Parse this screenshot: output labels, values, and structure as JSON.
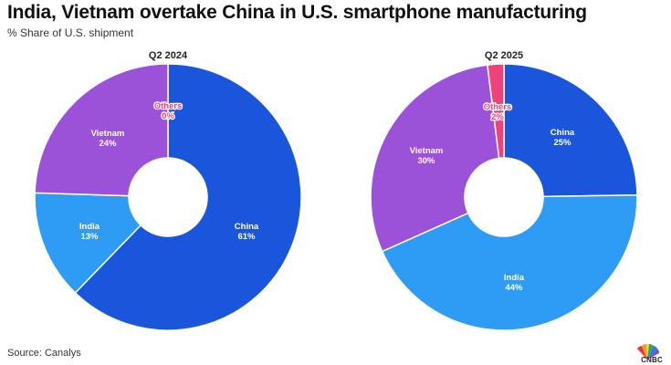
{
  "header": {
    "title": "India, Vietnam overtake China in U.S. smartphone manufacturing",
    "subtitle": "% Share of U.S. shipment"
  },
  "footer": {
    "source": "Source: Canalys",
    "logo_text": "CNBC",
    "logo_icon": "peacock-icon"
  },
  "colors": {
    "china": "#1a56db",
    "india": "#2e9bf5",
    "vietnam": "#9b51d8",
    "others": "#f0427a"
  },
  "chart_data": [
    {
      "type": "pie",
      "variant": "donut",
      "title": "Q2 2024",
      "slices": [
        {
          "label": "China",
          "value": 61,
          "value_label": "61%",
          "color": "#1a56db"
        },
        {
          "label": "India",
          "value": 13,
          "value_label": "13%",
          "color": "#2e9bf5"
        },
        {
          "label": "Vietnam",
          "value": 24,
          "value_label": "24%",
          "color": "#9b51d8"
        },
        {
          "label": "Others",
          "value": 0,
          "value_label": "0%",
          "color": "#f0427a"
        }
      ]
    },
    {
      "type": "pie",
      "variant": "donut",
      "title": "Q2 2025",
      "slices": [
        {
          "label": "China",
          "value": 25,
          "value_label": "25%",
          "color": "#1a56db"
        },
        {
          "label": "India",
          "value": 44,
          "value_label": "44%",
          "color": "#2e9bf5"
        },
        {
          "label": "Vietnam",
          "value": 30,
          "value_label": "30%",
          "color": "#9b51d8"
        },
        {
          "label": "Others",
          "value": 2,
          "value_label": "2%",
          "color": "#f0427a"
        }
      ]
    }
  ]
}
